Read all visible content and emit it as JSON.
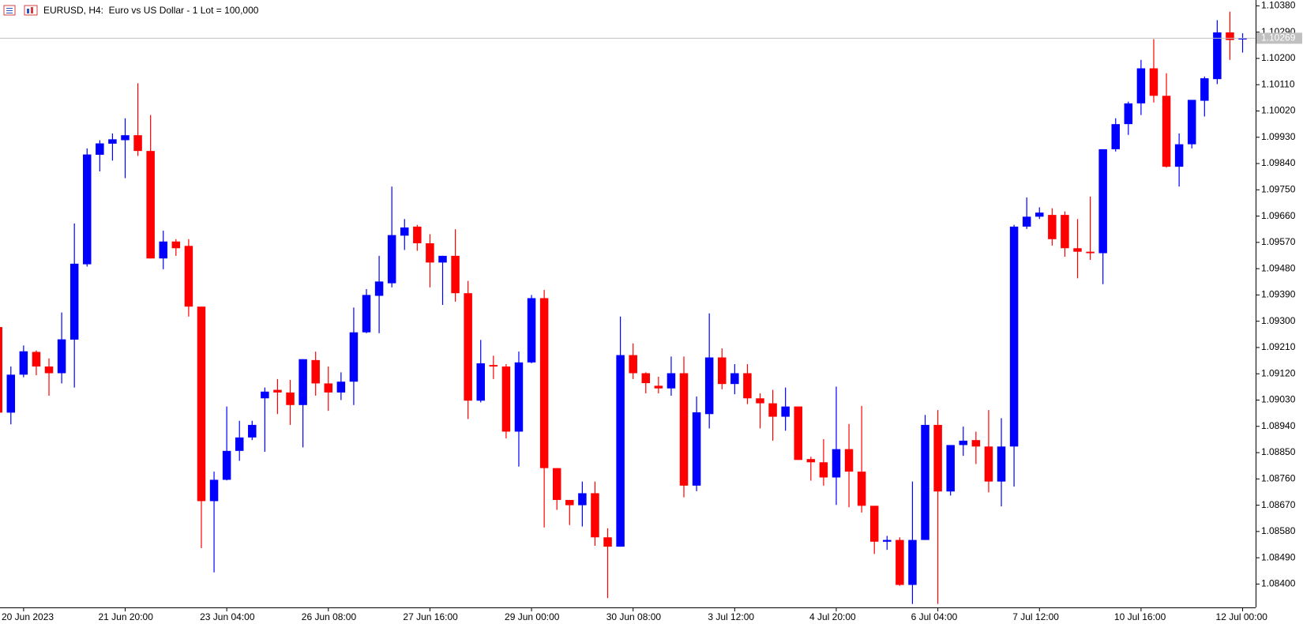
{
  "chart_data": {
    "type": "candlestick",
    "title": "EURUSD, H4:  Euro vs US Dollar - 1 Lot = 100,000",
    "up_color": "#0000ff",
    "down_color": "#ff0000",
    "price_line_color": "#c0c0c0",
    "last_price": 1.10269,
    "categories": [
      null,
      null,
      "20 Jun 2023",
      null,
      null,
      null,
      null,
      null,
      null,
      null,
      "21 Jun 20:00",
      null,
      null,
      null,
      null,
      null,
      null,
      null,
      "23 Jun 04:00",
      null,
      null,
      null,
      null,
      null,
      null,
      null,
      "26 Jun 08:00",
      null,
      null,
      null,
      null,
      null,
      null,
      null,
      "27 Jun 16:00",
      null,
      null,
      null,
      null,
      null,
      null,
      null,
      "29 Jun 00:00",
      null,
      null,
      null,
      null,
      null,
      null,
      null,
      "30 Jun 08:00",
      null,
      null,
      null,
      null,
      null,
      null,
      null,
      "3 Jul 12:00",
      null,
      null,
      null,
      null,
      null,
      null,
      null,
      "4 Jul 20:00",
      null,
      null,
      null,
      null,
      null,
      null,
      null,
      "6 Jul 04:00",
      null,
      null,
      null,
      null,
      null,
      null,
      null,
      "7 Jul 12:00",
      null,
      null,
      null,
      null,
      null,
      null,
      null,
      "10 Jul 16:00",
      null,
      null,
      null,
      null,
      null,
      null,
      null,
      "12 Jul 00:00"
    ],
    "open": [
      1.0928,
      1.08987,
      1.09117,
      1.09195,
      1.09145,
      1.09122,
      1.09237,
      1.09495,
      1.0987,
      1.09908,
      1.0992,
      1.09937,
      1.09883,
      1.09515,
      1.09573,
      1.09558,
      1.0935,
      1.08684,
      1.08757,
      1.08856,
      1.08902,
      1.09036,
      1.09065,
      1.09056,
      1.09013,
      1.09167,
      1.09087,
      1.09056,
      1.09093,
      1.09262,
      1.09387,
      1.0943,
      1.09593,
      1.09624,
      1.09567,
      1.09501,
      1.09524,
      1.09396,
      1.09028,
      1.0915,
      1.09145,
      1.08922,
      1.09159,
      1.09379,
      1.08797,
      1.08688,
      1.0867,
      1.08711,
      1.0856,
      1.08528,
      1.09184,
      1.09122,
      1.09079,
      1.0907,
      1.09122,
      1.08737,
      1.08982,
      1.09176,
      1.09085,
      1.09122,
      1.09036,
      1.09019,
      1.08973,
      1.09008,
      1.08828,
      1.08817,
      1.08765,
      1.08862,
      1.08785,
      1.08668,
      1.08545,
      1.08551,
      1.08397,
      1.08551,
      1.08945,
      1.08717,
      1.08876,
      1.08893,
      1.08871,
      1.08751,
      1.08871,
      1.09624,
      1.09658,
      1.09664,
      1.09664,
      1.0955,
      1.09538,
      1.09533,
      1.09889,
      1.09975,
      1.10046,
      1.10166,
      1.10072,
      1.09829,
      1.09906,
      1.10055,
      1.10129,
      1.10289,
      1.10266
    ],
    "high": [
      1.09285,
      1.09145,
      1.09217,
      1.092,
      1.09173,
      1.0933,
      1.09635,
      1.09892,
      1.0992,
      1.09943,
      1.09995,
      1.10115,
      1.10006,
      1.0961,
      1.09581,
      1.09581,
      1.0935,
      1.08785,
      1.09008,
      1.08959,
      1.08959,
      1.09073,
      1.09102,
      1.09099,
      1.0917,
      1.09196,
      1.09145,
      1.09125,
      1.09347,
      1.0941,
      1.09524,
      1.09761,
      1.0965,
      1.0963,
      1.09598,
      1.09524,
      1.09615,
      1.09438,
      1.09236,
      1.09182,
      1.09153,
      1.09196,
      1.0939,
      1.09407,
      1.08797,
      1.08688,
      1.08751,
      1.08751,
      1.08591,
      1.09316,
      1.09224,
      1.09125,
      1.0911,
      1.09179,
      1.09179,
      1.09042,
      1.09327,
      1.09207,
      1.09153,
      1.09153,
      1.09053,
      1.09065,
      1.09073,
      1.09008,
      1.08836,
      1.08896,
      1.09076,
      1.08948,
      1.0901,
      1.08668,
      1.08565,
      1.0856,
      1.08751,
      1.08979,
      1.08996,
      1.08876,
      1.08939,
      1.08922,
      1.08996,
      1.08968,
      1.0963,
      1.09724,
      1.0969,
      1.09687,
      1.09676,
      1.0965,
      1.09727,
      1.09889,
      1.09995,
      1.10052,
      1.10195,
      1.10266,
      1.10149,
      1.09943,
      1.10058,
      1.10138,
      1.10331,
      1.1036,
      1.10286
    ],
    "low": [
      1.0898,
      1.08947,
      1.09108,
      1.09115,
      1.09045,
      1.09087,
      1.09073,
      1.09487,
      1.09813,
      1.0985,
      1.0979,
      1.09866,
      1.09515,
      1.09478,
      1.09524,
      1.09316,
      1.08523,
      1.0844,
      1.08755,
      1.08822,
      1.08893,
      1.08853,
      1.08982,
      1.08945,
      1.08868,
      1.09045,
      1.08993,
      1.0903,
      1.09013,
      1.09259,
      1.09259,
      1.09416,
      1.09544,
      1.09541,
      1.09416,
      1.09356,
      1.09367,
      1.08965,
      1.09022,
      1.09102,
      1.08899,
      1.08802,
      1.09156,
      1.08594,
      1.08654,
      1.08602,
      1.08597,
      1.08531,
      1.08352,
      1.08528,
      1.09102,
      1.09053,
      1.09053,
      1.09045,
      1.08697,
      1.08718,
      1.08933,
      1.09067,
      1.0905,
      1.09016,
      1.08933,
      1.08891,
      1.08925,
      1.08825,
      1.08754,
      1.08737,
      1.08671,
      1.08663,
      1.08645,
      1.08503,
      1.08517,
      1.08394,
      1.08332,
      1.08551,
      1.08332,
      1.08703,
      1.08839,
      1.08811,
      1.08714,
      1.08666,
      1.08734,
      1.09616,
      1.0965,
      1.09559,
      1.09521,
      1.09447,
      1.0951,
      1.09427,
      1.09881,
      1.09938,
      1.10006,
      1.10049,
      1.09826,
      1.09761,
      1.09892,
      1.10001,
      1.10112,
      1.10195,
      1.1022
    ],
    "close": [
      1.08987,
      1.09117,
      1.09197,
      1.09145,
      1.09122,
      1.09238,
      1.09497,
      1.09871,
      1.09909,
      1.09923,
      1.09937,
      1.09883,
      1.09515,
      1.09573,
      1.0955,
      1.0935,
      1.08684,
      1.08757,
      1.08856,
      1.08902,
      1.08945,
      1.09059,
      1.09056,
      1.09013,
      1.0917,
      1.09087,
      1.09056,
      1.09093,
      1.09262,
      1.0939,
      1.09436,
      1.09595,
      1.09621,
      1.09567,
      1.09501,
      1.09524,
      1.09396,
      1.09028,
      1.09156,
      1.09145,
      1.08922,
      1.09159,
      1.09379,
      1.08797,
      1.08688,
      1.0867,
      1.08711,
      1.0856,
      1.08528,
      1.09184,
      1.09122,
      1.09088,
      1.0907,
      1.09122,
      1.08737,
      1.08988,
      1.09176,
      1.09085,
      1.09122,
      1.09036,
      1.09019,
      1.08973,
      1.09008,
      1.08825,
      1.08817,
      1.08765,
      1.08862,
      1.08785,
      1.08668,
      1.08545,
      1.08551,
      1.08397,
      1.08551,
      1.08945,
      1.08717,
      1.08876,
      1.08891,
      1.08871,
      1.08751,
      1.08871,
      1.09624,
      1.09658,
      1.09672,
      1.09581,
      1.0955,
      1.09538,
      1.09533,
      1.09889,
      1.09975,
      1.10046,
      1.10166,
      1.10072,
      1.09829,
      1.09906,
      1.10058,
      1.10132,
      1.10289,
      1.10263,
      1.10269
    ],
    "ylim": [
      1.0832,
      1.104
    ],
    "yticks": [
      {
        "value": 1.1038,
        "label": "1.10380"
      },
      {
        "value": 1.1029,
        "label": "1.10290"
      },
      {
        "value": 1.102,
        "label": "1.10200"
      },
      {
        "value": 1.1011,
        "label": "1.10110"
      },
      {
        "value": 1.1002,
        "label": "1.10020"
      },
      {
        "value": 1.0993,
        "label": "1.09930"
      },
      {
        "value": 1.0984,
        "label": "1.09840"
      },
      {
        "value": 1.0975,
        "label": "1.09750"
      },
      {
        "value": 1.0966,
        "label": "1.09660"
      },
      {
        "value": 1.0957,
        "label": "1.09570"
      },
      {
        "value": 1.0948,
        "label": "1.09480"
      },
      {
        "value": 1.0939,
        "label": "1.09390"
      },
      {
        "value": 1.093,
        "label": "1.09300"
      },
      {
        "value": 1.0921,
        "label": "1.09210"
      },
      {
        "value": 1.0912,
        "label": "1.09120"
      },
      {
        "value": 1.0903,
        "label": "1.09030"
      },
      {
        "value": 1.0894,
        "label": "1.08940"
      },
      {
        "value": 1.0885,
        "label": "1.08850"
      },
      {
        "value": 1.0876,
        "label": "1.08760"
      },
      {
        "value": 1.0867,
        "label": "1.08670"
      },
      {
        "value": 1.0858,
        "label": "1.08580"
      },
      {
        "value": 1.0849,
        "label": "1.08490"
      },
      {
        "value": 1.084,
        "label": "1.08400"
      }
    ],
    "grid": false
  }
}
